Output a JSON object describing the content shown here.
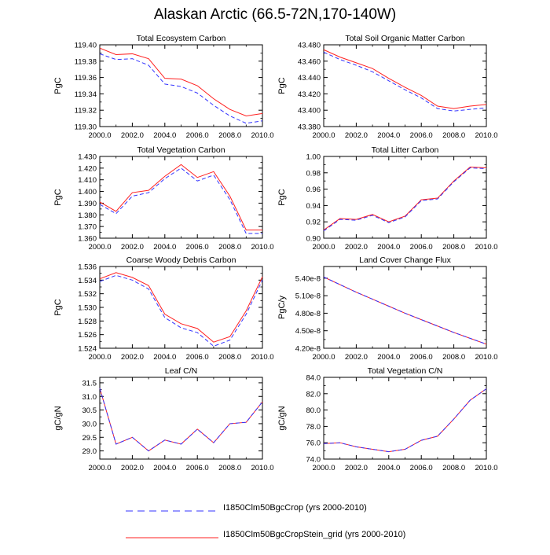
{
  "title": "Alaskan Arctic (66.5-72N,170-140W)",
  "legend": [
    {
      "label": "I1850Clm50BgcCrop (yrs 2000-2010)",
      "color": "#3333ff",
      "style": "dashed"
    },
    {
      "label": "I1850Clm50BgcCropStein_grid (yrs 2000-2010)",
      "color": "#ff2020",
      "style": "solid"
    }
  ],
  "chart_data": [
    {
      "type": "line",
      "title": "Total Ecosystem Carbon",
      "ylabel": "PgC",
      "x": [
        2000,
        2001,
        2002,
        2003,
        2004,
        2005,
        2006,
        2007,
        2008,
        2009,
        2010
      ],
      "xlim": [
        2000,
        2010
      ],
      "xticks": [
        "2000.0",
        "2002.0",
        "2004.0",
        "2006.0",
        "2008.0",
        "2010.0"
      ],
      "ylim": [
        119.3,
        119.4
      ],
      "yticks": [
        "119.30",
        "119.32",
        "119.34",
        "119.36",
        "119.38",
        "119.40"
      ],
      "series": [
        {
          "name": "I1850Clm50BgcCrop (yrs 2000-2010)",
          "values": [
            119.389,
            119.382,
            119.383,
            119.375,
            119.352,
            119.349,
            119.341,
            119.326,
            119.313,
            119.304,
            119.307
          ]
        },
        {
          "name": "I1850Clm50BgcCropStein_grid (yrs 2000-2010)",
          "values": [
            119.396,
            119.388,
            119.389,
            119.383,
            119.359,
            119.358,
            119.35,
            119.334,
            119.321,
            119.313,
            119.316
          ]
        }
      ]
    },
    {
      "type": "line",
      "title": "Total Soil Organic Matter Carbon",
      "ylabel": "PgC",
      "x": [
        2000,
        2001,
        2002,
        2003,
        2004,
        2005,
        2006,
        2007,
        2008,
        2009,
        2010
      ],
      "xlim": [
        2000,
        2010
      ],
      "xticks": [
        "2000.0",
        "2002.0",
        "2004.0",
        "2006.0",
        "2008.0",
        "2010.0"
      ],
      "ylim": [
        43.38,
        43.48
      ],
      "yticks": [
        "43.380",
        "43.400",
        "43.420",
        "43.440",
        "43.460",
        "43.480"
      ],
      "series": [
        {
          "name": "I1850Clm50BgcCrop (yrs 2000-2010)",
          "values": [
            43.471,
            43.462,
            43.455,
            43.447,
            43.436,
            43.425,
            43.415,
            43.402,
            43.399,
            43.401,
            43.403
          ]
        },
        {
          "name": "I1850Clm50BgcCropStein_grid (yrs 2000-2010)",
          "values": [
            43.474,
            43.465,
            43.458,
            43.451,
            43.439,
            43.428,
            43.418,
            43.405,
            43.402,
            43.405,
            43.407
          ]
        }
      ]
    },
    {
      "type": "line",
      "title": "Total Vegetation Carbon",
      "ylabel": "PgC",
      "x": [
        2000,
        2001,
        2002,
        2003,
        2004,
        2005,
        2006,
        2007,
        2008,
        2009,
        2010
      ],
      "xlim": [
        2000,
        2010
      ],
      "xticks": [
        "2000.0",
        "2002.0",
        "2004.0",
        "2006.0",
        "2008.0",
        "2010.0"
      ],
      "ylim": [
        1.36,
        1.43
      ],
      "yticks": [
        "1.360",
        "1.370",
        "1.380",
        "1.390",
        "1.400",
        "1.410",
        "1.420",
        "1.430"
      ],
      "series": [
        {
          "name": "I1850Clm50BgcCrop (yrs 2000-2010)",
          "values": [
            1.389,
            1.381,
            1.396,
            1.399,
            1.411,
            1.42,
            1.409,
            1.414,
            1.393,
            1.364,
            1.364
          ]
        },
        {
          "name": "I1850Clm50BgcCropStein_grid (yrs 2000-2010)",
          "values": [
            1.391,
            1.383,
            1.399,
            1.401,
            1.413,
            1.423,
            1.412,
            1.417,
            1.396,
            1.367,
            1.367
          ]
        }
      ]
    },
    {
      "type": "line",
      "title": "Total Litter Carbon",
      "ylabel": "PgC",
      "x": [
        2000,
        2001,
        2002,
        2003,
        2004,
        2005,
        2006,
        2007,
        2008,
        2009,
        2010
      ],
      "xlim": [
        2000,
        2010
      ],
      "xticks": [
        "2000.0",
        "2002.0",
        "2004.0",
        "2006.0",
        "2008.0",
        "2010.0"
      ],
      "ylim": [
        0.9,
        1.0
      ],
      "yticks": [
        "0.90",
        "0.92",
        "0.94",
        "0.96",
        "0.98",
        "1.00"
      ],
      "series": [
        {
          "name": "I1850Clm50BgcCrop (yrs 2000-2010)",
          "values": [
            0.909,
            0.923,
            0.922,
            0.928,
            0.919,
            0.926,
            0.946,
            0.948,
            0.969,
            0.986,
            0.985
          ]
        },
        {
          "name": "I1850Clm50BgcCropStein_grid (yrs 2000-2010)",
          "values": [
            0.91,
            0.924,
            0.923,
            0.929,
            0.92,
            0.927,
            0.947,
            0.949,
            0.97,
            0.987,
            0.986
          ]
        }
      ]
    },
    {
      "type": "line",
      "title": "Coarse Woody Debris Carbon",
      "ylabel": "PgC",
      "x": [
        2000,
        2001,
        2002,
        2003,
        2004,
        2005,
        2006,
        2007,
        2008,
        2009,
        2010
      ],
      "xlim": [
        2000,
        2010
      ],
      "xticks": [
        "2000.0",
        "2002.0",
        "2004.0",
        "2006.0",
        "2008.0",
        "2010.0"
      ],
      "ylim": [
        1.524,
        1.536
      ],
      "yticks": [
        "1.524",
        "1.526",
        "1.528",
        "1.530",
        "1.532",
        "1.534",
        "1.536"
      ],
      "series": [
        {
          "name": "I1850Clm50BgcCrop (yrs 2000-2010)",
          "values": [
            1.5338,
            1.5347,
            1.534,
            1.5327,
            1.5285,
            1.527,
            1.5263,
            1.5243,
            1.5252,
            1.529,
            1.534
          ]
        },
        {
          "name": "I1850Clm50BgcCropStein_grid (yrs 2000-2010)",
          "values": [
            1.5342,
            1.5351,
            1.5344,
            1.5332,
            1.529,
            1.5276,
            1.5269,
            1.5249,
            1.5257,
            1.5295,
            1.5345
          ]
        }
      ]
    },
    {
      "type": "line",
      "title": "Land Cover Change Flux",
      "ylabel": "PgC/y",
      "x": [
        2000,
        2001,
        2002,
        2003,
        2004,
        2005,
        2006,
        2007,
        2008,
        2009,
        2010
      ],
      "xlim": [
        2000,
        2010
      ],
      "xticks": [
        "2000.0",
        "2002.0",
        "2004.0",
        "2006.0",
        "2008.0",
        "2010.0"
      ],
      "ylim": [
        4.2e-08,
        5.6e-08
      ],
      "ytick_values": [
        4.2e-08,
        4.5e-08,
        4.8e-08,
        5.1e-08,
        5.4e-08
      ],
      "yticks": [
        "4.20e-8",
        "4.50e-8",
        "4.80e-8",
        "5.10e-8",
        "5.40e-8"
      ],
      "series": [
        {
          "name": "I1850Clm50BgcCrop (yrs 2000-2010)",
          "values": [
            5.42e-08,
            5.29e-08,
            5.16e-08,
            5.04e-08,
            4.92e-08,
            4.8e-08,
            4.69e-08,
            4.58e-08,
            4.47e-08,
            4.37e-08,
            4.27e-08
          ]
        },
        {
          "name": "I1850Clm50BgcCropStein_grid (yrs 2000-2010)",
          "values": [
            5.42e-08,
            5.29e-08,
            5.16e-08,
            5.04e-08,
            4.92e-08,
            4.8e-08,
            4.69e-08,
            4.58e-08,
            4.47e-08,
            4.37e-08,
            4.27e-08
          ]
        }
      ]
    },
    {
      "type": "line",
      "title": "Leaf C/N",
      "ylabel": "gC/gN",
      "x": [
        2000,
        2001,
        2002,
        2003,
        2004,
        2005,
        2006,
        2007,
        2008,
        2009,
        2010
      ],
      "xlim": [
        2000,
        2010
      ],
      "xticks": [
        "2000.0",
        "2002.0",
        "2004.0",
        "2006.0",
        "2008.0",
        "2010.0"
      ],
      "ylim": [
        28.7,
        31.7
      ],
      "ytick_values": [
        29.0,
        29.5,
        30.0,
        30.5,
        31.0,
        31.5
      ],
      "yticks": [
        "29.0",
        "29.5",
        "30.0",
        "30.5",
        "31.0",
        "31.5"
      ],
      "series": [
        {
          "name": "I1850Clm50BgcCrop (yrs 2000-2010)",
          "values": [
            31.3,
            29.25,
            29.5,
            29.0,
            29.4,
            29.25,
            29.8,
            29.3,
            30.0,
            30.05,
            30.8
          ]
        },
        {
          "name": "I1850Clm50BgcCropStein_grid (yrs 2000-2010)",
          "values": [
            31.3,
            29.25,
            29.5,
            29.0,
            29.4,
            29.25,
            29.8,
            29.3,
            30.0,
            30.05,
            30.8
          ]
        }
      ]
    },
    {
      "type": "line",
      "title": "Total Vegetation C/N",
      "ylabel": "gC/gN",
      "x": [
        2000,
        2001,
        2002,
        2003,
        2004,
        2005,
        2006,
        2007,
        2008,
        2009,
        2010
      ],
      "xlim": [
        2000,
        2010
      ],
      "xticks": [
        "2000.0",
        "2002.0",
        "2004.0",
        "2006.0",
        "2008.0",
        "2010.0"
      ],
      "ylim": [
        74.0,
        84.0
      ],
      "yticks": [
        "74.0",
        "76.0",
        "78.0",
        "80.0",
        "82.0",
        "84.0"
      ],
      "series": [
        {
          "name": "I1850Clm50BgcCrop (yrs 2000-2010)",
          "values": [
            75.9,
            76.0,
            75.5,
            75.2,
            74.9,
            75.2,
            76.3,
            76.8,
            78.9,
            81.2,
            82.6
          ]
        },
        {
          "name": "I1850Clm50BgcCropStein_grid (yrs 2000-2010)",
          "values": [
            75.9,
            76.0,
            75.5,
            75.2,
            74.9,
            75.2,
            76.3,
            76.8,
            78.9,
            81.2,
            82.6
          ]
        }
      ]
    }
  ]
}
